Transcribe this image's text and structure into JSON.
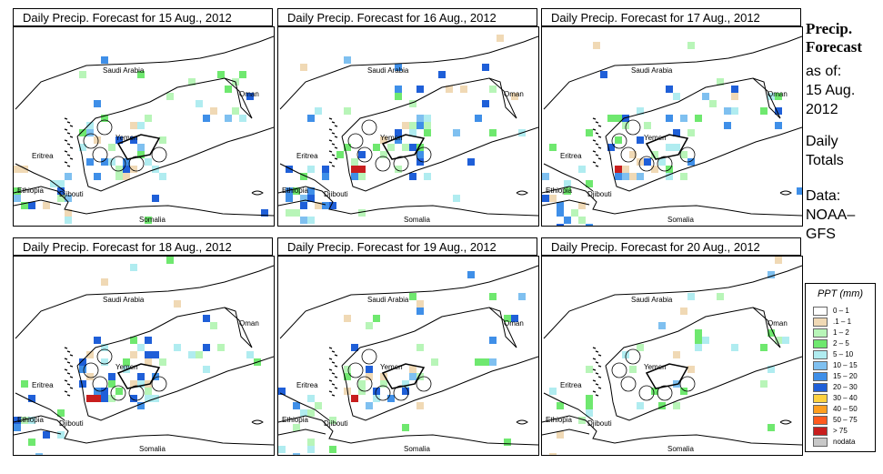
{
  "panels": [
    {
      "title": "Daily Precip. Forecast for  15 Aug., 2012"
    },
    {
      "title": "Daily Precip. Forecast for  16 Aug., 2012"
    },
    {
      "title": "Daily Precip. Forecast for  17 Aug., 2012"
    },
    {
      "title": "Daily Precip. Forecast for  18 Aug., 2012"
    },
    {
      "title": "Daily Precip. Forecast for  19 Aug., 2012"
    },
    {
      "title": "Daily Precip. Forecast for  20 Aug., 2012"
    }
  ],
  "map_labels": {
    "saudi_arabia": "Saudi Arabia",
    "oman": "Oman",
    "yemen": "Yemen",
    "eritrea": "Eritrea",
    "ethiopia": "Ethiopia",
    "djibouti": "Djibouti",
    "somalia": "Somalia"
  },
  "sidebar": {
    "heading_line1": "Precip.",
    "heading_line2": "Forecast",
    "as_of_line1": "as of:",
    "as_of_line2": "15 Aug.",
    "as_of_line3": "2012",
    "totals_line1": "Daily",
    "totals_line2": "Totals",
    "source_line1": "Data:",
    "source_line2": "NOAA–",
    "source_line3": "GFS"
  },
  "legend": {
    "title": "PPT (mm)",
    "items": [
      {
        "label": "0 – 1",
        "color": "#ffffff"
      },
      {
        "label": ".1 – 1",
        "color": "#f0d9b5"
      },
      {
        "label": "1 – 2",
        "color": "#b8f5b8"
      },
      {
        "label": "2 – 5",
        "color": "#6fe86f"
      },
      {
        "label": "5 – 10",
        "color": "#b0ecf0"
      },
      {
        "label": "10 – 15",
        "color": "#7fc0f0"
      },
      {
        "label": "15 – 20",
        "color": "#3f8fe8"
      },
      {
        "label": "20 – 30",
        "color": "#1f5fd8"
      },
      {
        "label": "30 – 40",
        "color": "#ffd23f"
      },
      {
        "label": "40 – 50",
        "color": "#ff9f1f"
      },
      {
        "label": "50 – 75",
        "color": "#ff5a1f"
      },
      {
        "label": "> 75",
        "color": "#c81e1e"
      },
      {
        "label": "nodata",
        "color": "#c8c8c8"
      }
    ]
  }
}
